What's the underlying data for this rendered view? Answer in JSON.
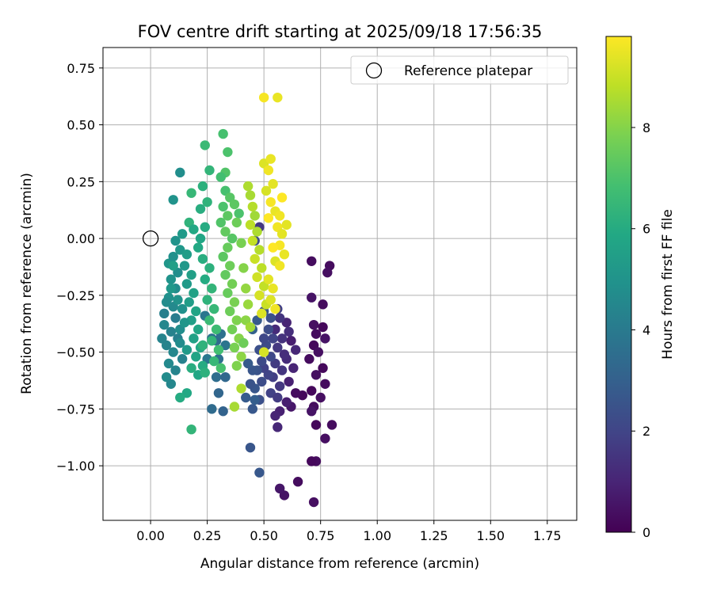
{
  "chart_data": {
    "type": "scatter",
    "title": "FOV centre drift starting at 2025/09/18 17:56:35",
    "xlabel": "Angular distance from reference (arcmin)",
    "ylabel": "Rotation from reference (arcmin)",
    "xlim": [
      -0.21,
      1.88
    ],
    "ylim": [
      -1.24,
      0.84
    ],
    "xticks": [
      0.0,
      0.25,
      0.5,
      0.75,
      1.0,
      1.25,
      1.5,
      1.75
    ],
    "xtick_labels": [
      "0.00",
      "0.25",
      "0.50",
      "0.75",
      "1.00",
      "1.25",
      "1.50",
      "1.75"
    ],
    "yticks": [
      0.75,
      0.5,
      0.25,
      0.0,
      -0.25,
      -0.5,
      -0.75,
      -1.0
    ],
    "ytick_labels": [
      "0.75",
      "0.50",
      "0.25",
      "0.00",
      "−0.25",
      "−0.50",
      "−0.75",
      "−1.00"
    ],
    "grid": true,
    "legend": {
      "label": "Reference platepar",
      "position": "top-right"
    },
    "reference_point": {
      "x": 0.0,
      "y": 0.0
    },
    "colorbar": {
      "label": "Hours from first FF file",
      "range": [
        0,
        9.8
      ],
      "ticks": [
        0,
        2,
        4,
        6,
        8
      ],
      "tick_labels": [
        "0",
        "2",
        "4",
        "6",
        "8"
      ],
      "colormap": "viridis"
    },
    "points": [
      [
        0.71,
        -0.1,
        0.3
      ],
      [
        0.79,
        -0.12,
        0.3
      ],
      [
        0.78,
        -0.15,
        0.4
      ],
      [
        0.76,
        -0.29,
        0.3
      ],
      [
        0.71,
        -0.26,
        0.5
      ],
      [
        0.72,
        -0.38,
        0.4
      ],
      [
        0.76,
        -0.39,
        0.2
      ],
      [
        0.73,
        -0.42,
        0.3
      ],
      [
        0.77,
        -0.44,
        0.5
      ],
      [
        0.72,
        -0.47,
        0.2
      ],
      [
        0.74,
        -0.5,
        0.4
      ],
      [
        0.7,
        -0.53,
        0.3
      ],
      [
        0.76,
        -0.57,
        0.2
      ],
      [
        0.73,
        -0.6,
        0.4
      ],
      [
        0.77,
        -0.64,
        0.3
      ],
      [
        0.71,
        -0.67,
        0.2
      ],
      [
        0.75,
        -0.7,
        0.4
      ],
      [
        0.72,
        -0.74,
        0.3
      ],
      [
        0.71,
        -0.76,
        0.5
      ],
      [
        0.8,
        -0.82,
        0.3
      ],
      [
        0.73,
        -0.82,
        0.2
      ],
      [
        0.77,
        -0.88,
        0.4
      ],
      [
        0.73,
        -0.98,
        0.3
      ],
      [
        0.71,
        -0.98,
        0.2
      ],
      [
        0.72,
        -1.16,
        0.4
      ],
      [
        0.65,
        -1.07,
        0.3
      ],
      [
        0.59,
        -1.13,
        0.5
      ],
      [
        0.57,
        -1.1,
        0.6
      ],
      [
        0.67,
        -0.69,
        0.2
      ],
      [
        0.64,
        -0.68,
        0.3
      ],
      [
        0.62,
        -0.74,
        0.6
      ],
      [
        0.6,
        -0.72,
        0.8
      ],
      [
        0.57,
        -0.76,
        0.9
      ],
      [
        0.55,
        -0.78,
        1.0
      ],
      [
        0.56,
        -0.83,
        1.1
      ],
      [
        0.61,
        -0.63,
        0.9
      ],
      [
        0.63,
        -0.57,
        1.0
      ],
      [
        0.6,
        -0.53,
        1.2
      ],
      [
        0.64,
        -0.49,
        1.1
      ],
      [
        0.62,
        -0.45,
        0.8
      ],
      [
        0.61,
        -0.41,
        1.3
      ],
      [
        0.6,
        -0.37,
        1.0
      ],
      [
        0.57,
        -0.35,
        1.5
      ],
      [
        0.55,
        -0.4,
        1.2
      ],
      [
        0.58,
        -0.44,
        1.4
      ],
      [
        0.56,
        -0.48,
        1.6
      ],
      [
        0.59,
        -0.51,
        1.3
      ],
      [
        0.55,
        -0.55,
        1.7
      ],
      [
        0.58,
        -0.58,
        1.5
      ],
      [
        0.54,
        -0.61,
        1.8
      ],
      [
        0.57,
        -0.65,
        1.6
      ],
      [
        0.53,
        -0.68,
        1.9
      ],
      [
        0.56,
        -0.7,
        1.7
      ],
      [
        0.52,
        -0.6,
        2.0
      ],
      [
        0.5,
        -0.57,
        1.9
      ],
      [
        0.53,
        -0.52,
        2.1
      ],
      [
        0.51,
        -0.47,
        2.2
      ],
      [
        0.54,
        -0.44,
        2.0
      ],
      [
        0.52,
        -0.4,
        2.3
      ],
      [
        0.5,
        -0.44,
        2.1
      ],
      [
        0.48,
        -0.49,
        2.4
      ],
      [
        0.49,
        -0.54,
        2.2
      ],
      [
        0.47,
        -0.58,
        2.5
      ],
      [
        0.49,
        -0.63,
        2.3
      ],
      [
        0.46,
        -0.66,
        2.6
      ],
      [
        0.48,
        -0.71,
        2.4
      ],
      [
        0.45,
        -0.75,
        2.7
      ],
      [
        0.44,
        -0.64,
        2.5
      ],
      [
        0.45,
        -0.58,
        2.6
      ],
      [
        0.43,
        -0.55,
        2.8
      ],
      [
        0.44,
        -0.92,
        2.6
      ],
      [
        0.48,
        -1.03,
        2.7
      ],
      [
        0.46,
        -0.71,
        2.9
      ],
      [
        0.42,
        -0.7,
        2.8
      ],
      [
        0.53,
        -0.35,
        2.4
      ],
      [
        0.5,
        -0.32,
        2.6
      ],
      [
        0.47,
        -0.36,
        2.8
      ],
      [
        0.45,
        -0.4,
        3.0
      ],
      [
        0.56,
        -0.31,
        1.8
      ],
      [
        0.48,
        0.05,
        1.6
      ],
      [
        0.46,
        -0.01,
        2.2
      ],
      [
        0.3,
        -0.68,
        3.2
      ],
      [
        0.33,
        -0.61,
        3.3
      ],
      [
        0.32,
        -0.76,
        3.1
      ],
      [
        0.27,
        -0.75,
        3.4
      ],
      [
        0.29,
        -0.61,
        3.5
      ],
      [
        0.3,
        -0.53,
        3.6
      ],
      [
        0.29,
        -0.45,
        3.4
      ],
      [
        0.27,
        -0.44,
        3.7
      ],
      [
        0.31,
        -0.42,
        3.6
      ],
      [
        0.33,
        -0.47,
        3.8
      ],
      [
        0.25,
        -0.53,
        3.9
      ],
      [
        0.24,
        -0.34,
        3.9
      ],
      [
        0.23,
        -0.47,
        4.0
      ],
      [
        0.11,
        -0.35,
        4.1
      ],
      [
        0.06,
        -0.33,
        4.2
      ],
      [
        0.09,
        -0.41,
        4.3
      ],
      [
        0.12,
        -0.44,
        4.2
      ],
      [
        0.07,
        -0.47,
        4.4
      ],
      [
        0.1,
        -0.5,
        4.5
      ],
      [
        0.14,
        -0.53,
        4.3
      ],
      [
        0.08,
        -0.55,
        4.6
      ],
      [
        0.11,
        -0.58,
        4.4
      ],
      [
        0.07,
        -0.61,
        4.7
      ],
      [
        0.09,
        -0.64,
        4.5
      ],
      [
        0.13,
        -0.4,
        4.8
      ],
      [
        0.1,
        -0.3,
        4.6
      ],
      [
        0.08,
        -0.26,
        4.9
      ],
      [
        0.11,
        -0.22,
        4.7
      ],
      [
        0.09,
        -0.18,
        5.0
      ],
      [
        0.12,
        -0.15,
        4.8
      ],
      [
        0.08,
        -0.11,
        5.1
      ],
      [
        0.1,
        -0.08,
        4.9
      ],
      [
        0.13,
        -0.05,
        5.2
      ],
      [
        0.11,
        -0.01,
        5.0
      ],
      [
        0.14,
        0.02,
        5.3
      ],
      [
        0.16,
        -0.07,
        5.4
      ],
      [
        0.15,
        -0.12,
        5.2
      ],
      [
        0.18,
        -0.16,
        5.5
      ],
      [
        0.16,
        -0.2,
        5.3
      ],
      [
        0.19,
        -0.24,
        5.6
      ],
      [
        0.17,
        -0.28,
        5.4
      ],
      [
        0.2,
        -0.32,
        5.7
      ],
      [
        0.18,
        -0.36,
        5.5
      ],
      [
        0.21,
        -0.4,
        5.8
      ],
      [
        0.19,
        -0.44,
        5.6
      ],
      [
        0.22,
        -0.48,
        5.9
      ],
      [
        0.2,
        -0.52,
        5.7
      ],
      [
        0.23,
        -0.56,
        6.0
      ],
      [
        0.21,
        -0.6,
        5.8
      ],
      [
        0.18,
        -0.57,
        6.1
      ],
      [
        0.16,
        -0.68,
        5.9
      ],
      [
        0.13,
        -0.7,
        6.0
      ],
      [
        0.1,
        -0.12,
        5.5
      ],
      [
        0.12,
        -0.27,
        5.0
      ],
      [
        0.14,
        -0.31,
        4.9
      ],
      [
        0.15,
        -0.37,
        5.1
      ],
      [
        0.13,
        -0.46,
        4.7
      ],
      [
        0.16,
        -0.49,
        5.3
      ],
      [
        0.05,
        -0.44,
        4.4
      ],
      [
        0.06,
        -0.38,
        4.5
      ],
      [
        0.07,
        -0.28,
        4.7
      ],
      [
        0.09,
        -0.22,
        5.2
      ],
      [
        0.13,
        0.29,
        4.8
      ],
      [
        0.1,
        0.17,
        5.0
      ],
      [
        0.17,
        0.07,
        6.3
      ],
      [
        0.19,
        0.04,
        5.9
      ],
      [
        0.18,
        0.2,
        6.5
      ],
      [
        0.24,
        0.41,
        6.6
      ],
      [
        0.26,
        0.3,
        6.4
      ],
      [
        0.23,
        0.23,
        6.2
      ],
      [
        0.22,
        0.13,
        6.1
      ],
      [
        0.25,
        0.16,
        6.3
      ],
      [
        0.24,
        0.05,
        6.0
      ],
      [
        0.22,
        0.0,
        5.8
      ],
      [
        0.21,
        -0.04,
        5.9
      ],
      [
        0.23,
        -0.09,
        6.1
      ],
      [
        0.26,
        -0.13,
        6.2
      ],
      [
        0.24,
        -0.18,
        6.0
      ],
      [
        0.27,
        -0.22,
        6.4
      ],
      [
        0.25,
        -0.27,
        6.3
      ],
      [
        0.28,
        -0.31,
        6.5
      ],
      [
        0.26,
        -0.36,
        6.6
      ],
      [
        0.29,
        -0.4,
        6.7
      ],
      [
        0.27,
        -0.45,
        6.4
      ],
      [
        0.3,
        -0.49,
        6.8
      ],
      [
        0.28,
        -0.54,
        6.5
      ],
      [
        0.31,
        -0.57,
        6.9
      ],
      [
        0.24,
        -0.59,
        6.2
      ],
      [
        0.23,
        -0.47,
        6.3
      ],
      [
        0.18,
        -0.84,
        6.4
      ],
      [
        0.32,
        0.46,
        6.9
      ],
      [
        0.34,
        0.38,
        7.0
      ],
      [
        0.33,
        0.29,
        7.1
      ],
      [
        0.31,
        0.27,
        6.8
      ],
      [
        0.33,
        0.21,
        6.9
      ],
      [
        0.35,
        0.18,
        7.2
      ],
      [
        0.32,
        0.14,
        7.0
      ],
      [
        0.34,
        0.1,
        7.3
      ],
      [
        0.31,
        0.07,
        7.1
      ],
      [
        0.33,
        0.03,
        7.4
      ],
      [
        0.36,
        0.0,
        7.2
      ],
      [
        0.34,
        -0.04,
        7.5
      ],
      [
        0.32,
        -0.08,
        7.3
      ],
      [
        0.35,
        -0.12,
        7.6
      ],
      [
        0.33,
        -0.16,
        7.4
      ],
      [
        0.36,
        -0.2,
        7.7
      ],
      [
        0.34,
        -0.24,
        7.5
      ],
      [
        0.37,
        -0.28,
        7.8
      ],
      [
        0.35,
        -0.32,
        7.6
      ],
      [
        0.38,
        -0.36,
        7.9
      ],
      [
        0.36,
        -0.4,
        7.7
      ],
      [
        0.39,
        -0.44,
        8.0
      ],
      [
        0.37,
        -0.48,
        7.8
      ],
      [
        0.4,
        -0.52,
        8.1
      ],
      [
        0.38,
        -0.56,
        7.9
      ],
      [
        0.41,
        -0.46,
        7.6
      ],
      [
        0.39,
        0.11,
        7.0
      ],
      [
        0.37,
        0.15,
        7.3
      ],
      [
        0.38,
        0.07,
        7.6
      ],
      [
        0.4,
        -0.02,
        7.8
      ],
      [
        0.41,
        -0.13,
        8.0
      ],
      [
        0.42,
        -0.22,
        8.2
      ],
      [
        0.43,
        -0.29,
        8.3
      ],
      [
        0.42,
        -0.36,
        8.1
      ],
      [
        0.44,
        -0.39,
        8.4
      ],
      [
        0.4,
        -0.66,
        8.6
      ],
      [
        0.37,
        -0.74,
        8.5
      ],
      [
        0.43,
        0.23,
        8.6
      ],
      [
        0.44,
        0.19,
        8.5
      ],
      [
        0.45,
        0.14,
        8.7
      ],
      [
        0.46,
        0.1,
        8.4
      ],
      [
        0.44,
        0.06,
        8.8
      ],
      [
        0.47,
        0.03,
        8.6
      ],
      [
        0.45,
        -0.01,
        8.9
      ],
      [
        0.48,
        -0.05,
        8.7
      ],
      [
        0.46,
        -0.09,
        9.0
      ],
      [
        0.49,
        -0.13,
        8.8
      ],
      [
        0.47,
        -0.17,
        9.1
      ],
      [
        0.5,
        -0.21,
        8.9
      ],
      [
        0.48,
        -0.25,
        9.2
      ],
      [
        0.51,
        -0.29,
        9.0
      ],
      [
        0.49,
        -0.33,
        9.3
      ],
      [
        0.52,
        -0.18,
        9.4
      ],
      [
        0.54,
        -0.22,
        9.5
      ],
      [
        0.53,
        -0.27,
        9.3
      ],
      [
        0.55,
        -0.31,
        9.6
      ],
      [
        0.5,
        -0.5,
        9.2
      ],
      [
        0.5,
        0.33,
        9.3
      ],
      [
        0.53,
        0.35,
        9.5
      ],
      [
        0.52,
        0.3,
        9.6
      ],
      [
        0.54,
        0.24,
        9.4
      ],
      [
        0.51,
        0.21,
        9.2
      ],
      [
        0.53,
        0.16,
        9.7
      ],
      [
        0.55,
        0.12,
        9.5
      ],
      [
        0.52,
        0.09,
        9.8
      ],
      [
        0.56,
        0.05,
        9.6
      ],
      [
        0.58,
        0.02,
        9.4
      ],
      [
        0.57,
        -0.03,
        9.7
      ],
      [
        0.59,
        -0.07,
        9.5
      ],
      [
        0.55,
        -0.1,
        9.3
      ],
      [
        0.58,
        0.18,
        9.8
      ],
      [
        0.57,
        0.1,
        9.6
      ],
      [
        0.6,
        0.06,
        9.4
      ],
      [
        0.5,
        0.62,
        9.7
      ],
      [
        0.56,
        0.62,
        9.5
      ],
      [
        0.57,
        -0.12,
        9.6
      ],
      [
        0.54,
        -0.04,
        9.8
      ]
    ]
  }
}
